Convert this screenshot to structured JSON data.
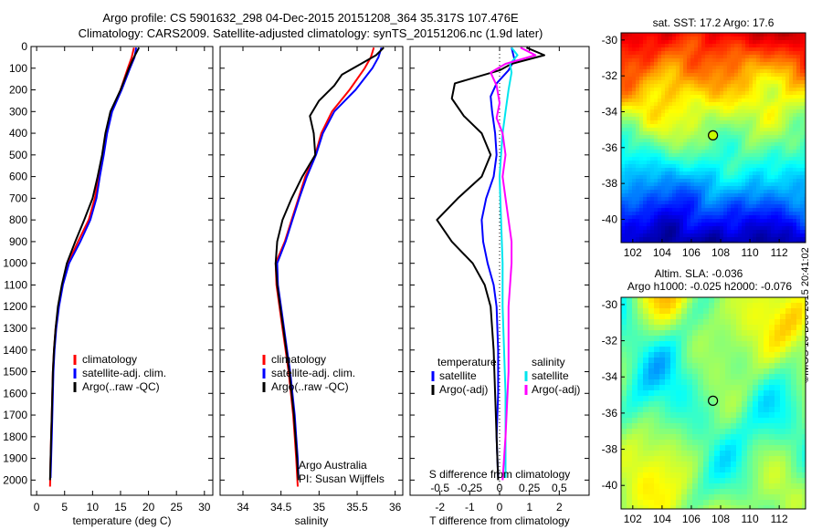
{
  "header": {
    "line1": "Argo profile: CS 5901632_298 04-Dec-2015 20151208_364 35.317S 107.476E",
    "line2": "Climatology: CARS2009. Satellite-adjusted climatology: synTS_20151206.nc (1.9d later)"
  },
  "copyright": "©IMOS 13-Dec-2015 20:41:02",
  "colors": {
    "climatology": "#ff0000",
    "satellite": "#0000ff",
    "argo": "#000000",
    "s_satellite": "#00e5ee",
    "s_argo": "#ff00ff"
  },
  "chart_data": [
    {
      "type": "line",
      "id": "temperature",
      "xlabel": "temperature (deg C)",
      "ylabel": "",
      "xlim": [
        -1,
        31.5
      ],
      "ylim": [
        2070,
        0
      ],
      "xticks": [
        0,
        5,
        10,
        15,
        20,
        25,
        30
      ],
      "yticks": [
        0,
        100,
        200,
        300,
        400,
        500,
        600,
        700,
        800,
        900,
        1000,
        1100,
        1200,
        1300,
        1400,
        1500,
        1600,
        1700,
        1800,
        1900,
        2000
      ],
      "legend": {
        "position": "lower-middle",
        "entries": [
          "climatology",
          "satellite-adj. clim.",
          "Argo(..raw -QC)"
        ]
      },
      "series": [
        {
          "name": "climatology",
          "color": "#ff0000",
          "points": [
            [
              17.4,
              5
            ],
            [
              17.0,
              50
            ],
            [
              16.3,
              100
            ],
            [
              15.0,
              200
            ],
            [
              13.4,
              300
            ],
            [
              12.4,
              400
            ],
            [
              11.8,
              500
            ],
            [
              11.1,
              600
            ],
            [
              10.4,
              700
            ],
            [
              9.3,
              800
            ],
            [
              7.4,
              900
            ],
            [
              5.6,
              1000
            ],
            [
              4.6,
              1100
            ],
            [
              3.9,
              1200
            ],
            [
              3.4,
              1300
            ],
            [
              3.1,
              1400
            ],
            [
              2.9,
              1500
            ],
            [
              2.8,
              1600
            ],
            [
              2.7,
              1700
            ],
            [
              2.6,
              1800
            ],
            [
              2.5,
              1900
            ],
            [
              2.4,
              2030
            ]
          ]
        },
        {
          "name": "satellite-adj. clim.",
          "color": "#0000ff",
          "points": [
            [
              17.8,
              5
            ],
            [
              17.5,
              50
            ],
            [
              16.7,
              100
            ],
            [
              15.2,
              200
            ],
            [
              13.5,
              300
            ],
            [
              12.6,
              400
            ],
            [
              12.0,
              500
            ],
            [
              11.3,
              600
            ],
            [
              10.7,
              700
            ],
            [
              9.6,
              800
            ],
            [
              7.8,
              900
            ],
            [
              5.8,
              1000
            ],
            [
              4.7,
              1100
            ],
            [
              4.0,
              1200
            ],
            [
              3.5,
              1300
            ],
            [
              3.2,
              1400
            ],
            [
              3.0,
              1500
            ],
            [
              2.9,
              1600
            ],
            [
              2.8,
              1700
            ],
            [
              2.7,
              1800
            ],
            [
              2.6,
              1900
            ],
            [
              2.5,
              1990
            ]
          ]
        },
        {
          "name": "Argo(..raw -QC)",
          "color": "#000000",
          "points": [
            [
              18.3,
              5
            ],
            [
              17.8,
              30
            ],
            [
              17.2,
              60
            ],
            [
              16.5,
              100
            ],
            [
              15.0,
              200
            ],
            [
              13.2,
              300
            ],
            [
              12.3,
              400
            ],
            [
              11.7,
              500
            ],
            [
              10.9,
              600
            ],
            [
              10.0,
              700
            ],
            [
              8.5,
              800
            ],
            [
              6.9,
              900
            ],
            [
              5.4,
              1000
            ],
            [
              4.5,
              1100
            ],
            [
              3.8,
              1200
            ],
            [
              3.4,
              1300
            ],
            [
              3.1,
              1400
            ],
            [
              2.9,
              1500
            ],
            [
              2.8,
              1600
            ],
            [
              2.7,
              1700
            ],
            [
              2.6,
              1800
            ],
            [
              2.5,
              1900
            ],
            [
              2.4,
              2000
            ]
          ]
        }
      ]
    },
    {
      "type": "line",
      "id": "salinity",
      "xlabel": "salinity",
      "xlim": [
        33.7,
        36.1
      ],
      "ylim": [
        2070,
        0
      ],
      "xticks": [
        34,
        34.5,
        35,
        35.5,
        36
      ],
      "legend": {
        "position": "lower-middle",
        "entries": [
          "climatology",
          "satellite-adj. clim.",
          "Argo(..raw -QC)"
        ]
      },
      "annotation": {
        "line1": "Argo Australia",
        "line2": "PI: Susan Wijffels"
      },
      "series": [
        {
          "name": "climatology",
          "color": "#ff0000",
          "points": [
            [
              35.72,
              5
            ],
            [
              35.68,
              50
            ],
            [
              35.6,
              100
            ],
            [
              35.4,
              200
            ],
            [
              35.17,
              300
            ],
            [
              35.03,
              400
            ],
            [
              34.95,
              500
            ],
            [
              34.82,
              600
            ],
            [
              34.73,
              700
            ],
            [
              34.64,
              800
            ],
            [
              34.55,
              900
            ],
            [
              34.43,
              1000
            ],
            [
              34.44,
              1100
            ],
            [
              34.48,
              1200
            ],
            [
              34.52,
              1300
            ],
            [
              34.56,
              1400
            ],
            [
              34.6,
              1500
            ],
            [
              34.63,
              1600
            ],
            [
              34.66,
              1700
            ],
            [
              34.68,
              1800
            ],
            [
              34.7,
              1900
            ],
            [
              34.72,
              2030
            ]
          ]
        },
        {
          "name": "satellite-adj. clim.",
          "color": "#0000ff",
          "points": [
            [
              35.82,
              5
            ],
            [
              35.78,
              50
            ],
            [
              35.7,
              100
            ],
            [
              35.48,
              200
            ],
            [
              35.2,
              300
            ],
            [
              35.05,
              400
            ],
            [
              34.96,
              500
            ],
            [
              34.84,
              600
            ],
            [
              34.74,
              700
            ],
            [
              34.65,
              800
            ],
            [
              34.56,
              900
            ],
            [
              34.45,
              1000
            ],
            [
              34.46,
              1100
            ],
            [
              34.5,
              1200
            ],
            [
              34.54,
              1300
            ],
            [
              34.58,
              1400
            ],
            [
              34.62,
              1500
            ],
            [
              34.65,
              1600
            ],
            [
              34.68,
              1700
            ],
            [
              34.7,
              1800
            ],
            [
              34.72,
              1900
            ],
            [
              34.73,
              1990
            ]
          ]
        },
        {
          "name": "Argo(..raw -QC)",
          "color": "#000000",
          "points": [
            [
              35.85,
              5
            ],
            [
              35.75,
              40
            ],
            [
              35.55,
              80
            ],
            [
              35.3,
              130
            ],
            [
              35.2,
              180
            ],
            [
              35.0,
              250
            ],
            [
              34.88,
              320
            ],
            [
              34.93,
              400
            ],
            [
              34.95,
              500
            ],
            [
              34.78,
              600
            ],
            [
              34.64,
              700
            ],
            [
              34.52,
              800
            ],
            [
              34.45,
              900
            ],
            [
              34.43,
              1000
            ],
            [
              34.45,
              1100
            ],
            [
              34.49,
              1200
            ],
            [
              34.53,
              1300
            ],
            [
              34.57,
              1400
            ],
            [
              34.61,
              1500
            ],
            [
              34.64,
              1600
            ],
            [
              34.67,
              1700
            ],
            [
              34.69,
              1800
            ],
            [
              34.71,
              1900
            ],
            [
              34.73,
              2000
            ]
          ]
        }
      ]
    },
    {
      "type": "line",
      "id": "difference",
      "xlabel": "T difference from climatology",
      "xlabel_top": "S difference from climatology",
      "xlim": [
        -3,
        3
      ],
      "ylim": [
        2070,
        0
      ],
      "xticks": [
        -2,
        -1,
        0,
        1,
        2
      ],
      "xticklabels_s": [
        "-0.5",
        "-0.25",
        "0",
        "0.25",
        "0.5"
      ],
      "legend": {
        "position": "lower",
        "group_t_title": "temperature",
        "group_s_title": "salinity",
        "entries_t": [
          "satellite",
          "Argo(-adj)"
        ],
        "entries_s": [
          "satellite",
          "Argo(-adj)"
        ]
      },
      "series": [
        {
          "name": "satellite",
          "group": "temperature",
          "color": "#0000ff",
          "points": [
            [
              0.4,
              5
            ],
            [
              0.5,
              60
            ],
            [
              0.3,
              110
            ],
            [
              -0.1,
              170
            ],
            [
              -0.3,
              230
            ],
            [
              -0.25,
              300
            ],
            [
              -0.15,
              400
            ],
            [
              -0.1,
              500
            ],
            [
              -0.2,
              600
            ],
            [
              -0.45,
              700
            ],
            [
              -0.6,
              800
            ],
            [
              -0.55,
              900
            ],
            [
              -0.4,
              1000
            ],
            [
              -0.2,
              1100
            ],
            [
              -0.1,
              1200
            ],
            [
              -0.05,
              1400
            ],
            [
              -0.05,
              1600
            ],
            [
              -0.1,
              1800
            ],
            [
              -0.05,
              1990
            ]
          ]
        },
        {
          "name": "Argo(-adj)",
          "group": "temperature",
          "color": "#000000",
          "points": [
            [
              0.9,
              5
            ],
            [
              1.5,
              40
            ],
            [
              0.4,
              80
            ],
            [
              0.0,
              110
            ],
            [
              -1.5,
              170
            ],
            [
              -1.6,
              240
            ],
            [
              -1.2,
              320
            ],
            [
              -0.6,
              400
            ],
            [
              -0.3,
              500
            ],
            [
              -0.6,
              600
            ],
            [
              -1.4,
              700
            ],
            [
              -2.1,
              800
            ],
            [
              -1.6,
              900
            ],
            [
              -0.9,
              1000
            ],
            [
              -0.5,
              1100
            ],
            [
              -0.3,
              1200
            ],
            [
              -0.2,
              1400
            ],
            [
              -0.15,
              1600
            ],
            [
              -0.1,
              1800
            ],
            [
              -0.05,
              2000
            ]
          ]
        },
        {
          "name": "satellite",
          "group": "salinity",
          "color": "#00e5ee",
          "points": [
            [
              0.4,
              5
            ],
            [
              0.6,
              40
            ],
            [
              0.35,
              80
            ],
            [
              0.4,
              120
            ],
            [
              0.3,
              200
            ],
            [
              0.2,
              300
            ],
            [
              0.1,
              400
            ],
            [
              0.05,
              500
            ],
            [
              0.0,
              600
            ],
            [
              0.05,
              800
            ],
            [
              0.1,
              1000
            ],
            [
              0.1,
              1200
            ],
            [
              0.15,
              1400
            ],
            [
              0.2,
              1600
            ],
            [
              0.2,
              1990
            ]
          ]
        },
        {
          "name": "Argo(-adj)",
          "group": "salinity",
          "color": "#ff00ff",
          "points": [
            [
              0.7,
              5
            ],
            [
              1.2,
              40
            ],
            [
              0.2,
              80
            ],
            [
              -0.3,
              120
            ],
            [
              -0.1,
              180
            ],
            [
              0.0,
              260
            ],
            [
              -0.1,
              330
            ],
            [
              0.1,
              400
            ],
            [
              0.2,
              500
            ],
            [
              0.1,
              600
            ],
            [
              0.2,
              700
            ],
            [
              0.3,
              800
            ],
            [
              0.4,
              900
            ],
            [
              0.4,
              1000
            ],
            [
              0.3,
              1200
            ],
            [
              0.3,
              1500
            ],
            [
              0.2,
              1800
            ],
            [
              0.1,
              2000
            ]
          ]
        }
      ]
    },
    {
      "type": "heatmap",
      "id": "sst_map",
      "title": "sat. SST: 17.2  Argo: 17.6",
      "xlim": [
        101.2,
        113.8
      ],
      "ylim": [
        -41.3,
        -29.6
      ],
      "xticks": [
        102,
        104,
        106,
        108,
        110,
        112
      ],
      "yticks": [
        -30,
        -32,
        -34,
        -36,
        -38,
        -40
      ],
      "argo_position": [
        107.476,
        -35.317
      ]
    },
    {
      "type": "heatmap",
      "id": "sla_map",
      "title": "Altim. SLA: -0.036",
      "subtitle": "Argo h1000: -0.025 h2000: -0.076",
      "xlim": [
        101.2,
        113.8
      ],
      "ylim": [
        -41.3,
        -29.6
      ],
      "xticks": [
        102,
        104,
        106,
        108,
        110,
        112
      ],
      "yticks": [
        -30,
        -32,
        -34,
        -36,
        -38,
        -40
      ],
      "argo_position": [
        107.476,
        -35.317
      ]
    }
  ]
}
